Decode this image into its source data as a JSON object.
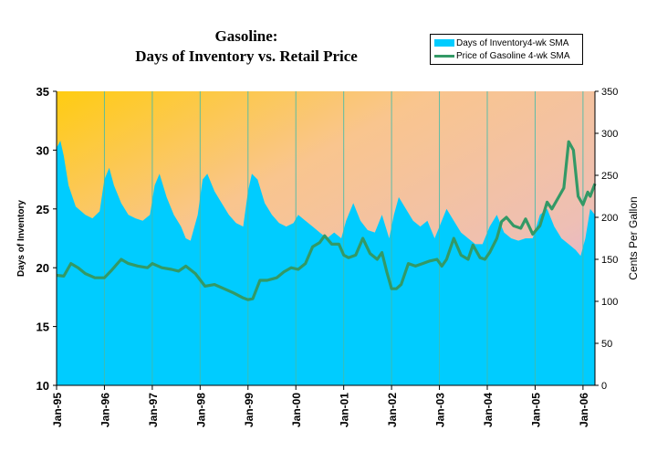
{
  "chart_data": {
    "type": "area+line",
    "title": "Gasoline:",
    "subtitle": "Days of Inventory vs. Retail Price",
    "ylabel_left": "Days of Inventory",
    "ylabel_right": "Cents Per Gallon",
    "ylim_left": [
      10,
      35
    ],
    "ylim_right": [
      0,
      350
    ],
    "yticks_left": [
      "10",
      "15",
      "20",
      "25",
      "30",
      "35"
    ],
    "yticks_right": [
      "0",
      "50",
      "100",
      "150",
      "200",
      "250",
      "300",
      "350"
    ],
    "xticks": [
      "Jan-95",
      "Jan-96",
      "Jan-97",
      "Jan-98",
      "Jan-99",
      "Jan-00",
      "Jan-01",
      "Jan-02",
      "Jan-03",
      "Jan-04",
      "Jan-05",
      "Jan-06"
    ],
    "x_range_years": [
      1995.0,
      2006.25
    ],
    "legend_position": "top-right",
    "series": [
      {
        "name": "Days of Inventory4-wk SMA",
        "kind": "area",
        "axis": "left",
        "color": "#00ccff",
        "x": [
          1995.0,
          1995.08,
          1995.15,
          1995.25,
          1995.4,
          1995.6,
          1995.75,
          1995.9,
          1996.0,
          1996.1,
          1996.2,
          1996.35,
          1996.5,
          1996.65,
          1996.8,
          1996.95,
          1997.05,
          1997.15,
          1997.3,
          1997.45,
          1997.6,
          1997.7,
          1997.8,
          1997.95,
          1998.05,
          1998.15,
          1998.3,
          1998.45,
          1998.6,
          1998.75,
          1998.9,
          1999.0,
          1999.08,
          1999.2,
          1999.35,
          1999.5,
          1999.65,
          1999.8,
          1999.95,
          2000.05,
          2000.2,
          2000.35,
          2000.5,
          2000.65,
          2000.8,
          2000.95,
          2001.05,
          2001.2,
          2001.35,
          2001.5,
          2001.65,
          2001.8,
          2001.95,
          2002.05,
          2002.15,
          2002.3,
          2002.45,
          2002.6,
          2002.75,
          2002.9,
          2003.0,
          2003.15,
          2003.3,
          2003.45,
          2003.6,
          2003.75,
          2003.9,
          2004.05,
          2004.2,
          2004.35,
          2004.5,
          2004.65,
          2004.8,
          2004.95,
          2005.1,
          2005.25,
          2005.4,
          2005.55,
          2005.7,
          2005.85,
          2005.95,
          2006.05,
          2006.15,
          2006.25
        ],
        "y": [
          30.2,
          30.8,
          29.5,
          27.0,
          25.2,
          24.5,
          24.2,
          24.8,
          27.5,
          28.5,
          27.0,
          25.5,
          24.5,
          24.2,
          24.0,
          24.5,
          27.0,
          28.0,
          26.0,
          24.5,
          23.5,
          22.5,
          22.3,
          24.5,
          27.5,
          28.0,
          26.5,
          25.5,
          24.5,
          23.8,
          23.5,
          26.5,
          28.0,
          27.5,
          25.5,
          24.5,
          23.8,
          23.5,
          23.8,
          24.5,
          24.0,
          23.5,
          23.0,
          22.5,
          23.0,
          22.5,
          24.0,
          25.5,
          24.0,
          23.2,
          23.0,
          24.5,
          22.5,
          24.5,
          26.0,
          25.0,
          24.0,
          23.5,
          24.0,
          22.5,
          23.5,
          25.0,
          24.0,
          23.0,
          22.5,
          22.0,
          22.0,
          23.5,
          24.5,
          23.0,
          22.5,
          22.3,
          22.5,
          22.5,
          24.5,
          25.0,
          23.5,
          22.5,
          22.0,
          21.5,
          21.0,
          22.5,
          25.0,
          24.5
        ]
      },
      {
        "name": "Price of Gasoline 4-wk SMA",
        "kind": "line",
        "axis": "right",
        "color": "#339966",
        "x": [
          1995.0,
          1995.15,
          1995.3,
          1995.45,
          1995.6,
          1995.8,
          1996.0,
          1996.15,
          1996.35,
          1996.5,
          1996.7,
          1996.9,
          1997.0,
          1997.2,
          1997.4,
          1997.55,
          1997.7,
          1997.9,
          1998.1,
          1998.3,
          1998.5,
          1998.7,
          1998.9,
          1999.0,
          1999.1,
          1999.25,
          1999.4,
          1999.6,
          1999.75,
          1999.9,
          2000.05,
          2000.2,
          2000.35,
          2000.5,
          2000.6,
          2000.75,
          2000.9,
          2001.0,
          2001.1,
          2001.25,
          2001.4,
          2001.55,
          2001.7,
          2001.8,
          2001.9,
          2002.0,
          2002.1,
          2002.2,
          2002.35,
          2002.5,
          2002.65,
          2002.8,
          2002.95,
          2003.05,
          2003.15,
          2003.3,
          2003.45,
          2003.6,
          2003.7,
          2003.85,
          2003.95,
          2004.05,
          2004.2,
          2004.3,
          2004.4,
          2004.55,
          2004.7,
          2004.8,
          2004.95,
          2005.1,
          2005.25,
          2005.35,
          2005.5,
          2005.6,
          2005.7,
          2005.8,
          2005.9,
          2006.0,
          2006.1,
          2006.15,
          2006.25
        ],
        "y": [
          131,
          130,
          145,
          140,
          133,
          128,
          128,
          137,
          150,
          145,
          142,
          140,
          145,
          140,
          138,
          136,
          142,
          133,
          118,
          120,
          115,
          110,
          104,
          102,
          103,
          125,
          125,
          128,
          135,
          140,
          138,
          145,
          165,
          170,
          178,
          168,
          168,
          155,
          152,
          155,
          175,
          157,
          150,
          158,
          135,
          115,
          115,
          120,
          145,
          142,
          145,
          148,
          150,
          142,
          150,
          175,
          155,
          150,
          167,
          152,
          150,
          158,
          175,
          195,
          200,
          190,
          187,
          198,
          180,
          190,
          218,
          210,
          225,
          235,
          290,
          280,
          225,
          215,
          230,
          225,
          240
        ]
      }
    ]
  }
}
